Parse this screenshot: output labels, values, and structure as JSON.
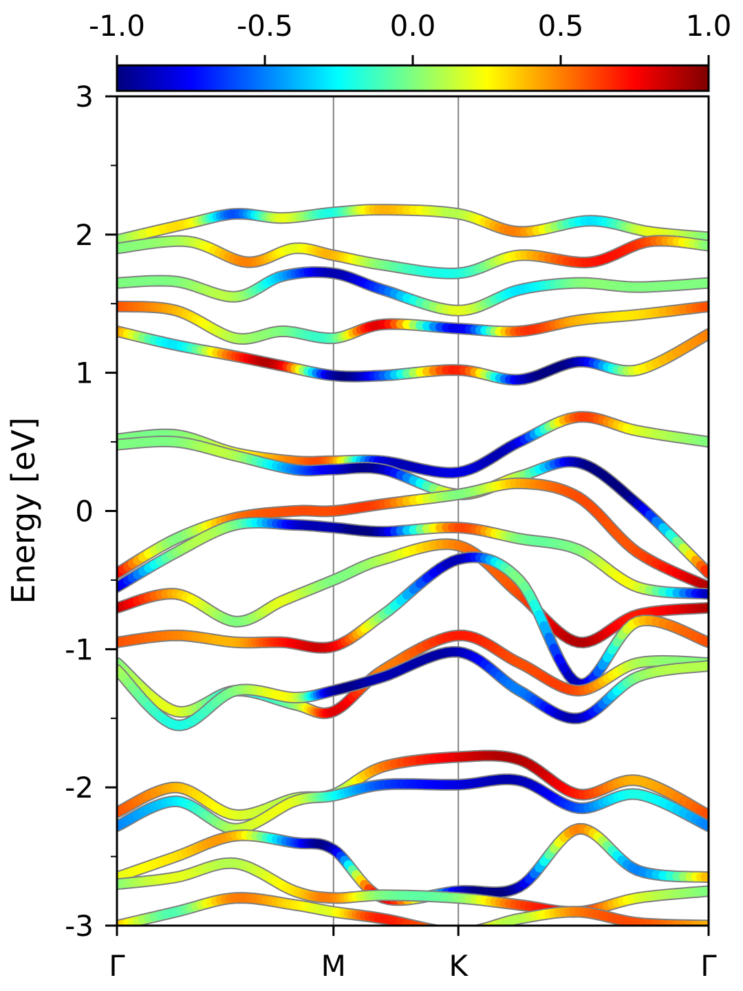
{
  "chart_data": {
    "type": "line",
    "ylabel": "Energy [eV]",
    "xlabel": "",
    "ylim": [
      -3,
      3
    ],
    "xlim": [
      0,
      1
    ],
    "grid": false,
    "legend": "none",
    "colormap": "jet",
    "colorbar": {
      "range": [
        -1.0,
        1.0
      ],
      "tick_values": [
        -1.0,
        -0.5,
        0.0,
        0.5,
        1.0
      ],
      "tick_labels": [
        "-1.0",
        "-0.5",
        "0.0",
        "0.5",
        "1.0"
      ],
      "placement": "top"
    },
    "x_ticks": [
      {
        "label": "Γ",
        "x": 0.0
      },
      {
        "label": "M",
        "x": 0.366
      },
      {
        "label": "K",
        "x": 0.577
      },
      {
        "label": "Γ",
        "x": 1.0
      }
    ],
    "y_ticks": [
      {
        "label": "3",
        "y": 3
      },
      {
        "label": "2",
        "y": 2
      },
      {
        "label": "1",
        "y": 1
      },
      {
        "label": "0",
        "y": 0
      },
      {
        "label": "-1",
        "y": -1
      },
      {
        "label": "-2",
        "y": -2
      },
      {
        "label": "-3",
        "y": -3
      }
    ],
    "y_minor_ticks": [
      2.5,
      1.5,
      0.5,
      -0.5,
      -1.5,
      -2.5
    ],
    "vertical_lines": [
      0.366,
      0.577
    ],
    "series": [
      {
        "x": [
          0,
          0.12,
          0.2,
          0.28,
          0.366,
          0.45,
          0.577,
          0.68,
          0.8,
          0.9,
          1.0
        ],
        "y": [
          1.96,
          2.08,
          2.15,
          2.12,
          2.16,
          2.18,
          2.15,
          2.02,
          2.1,
          2.02,
          1.98
        ],
        "c": [
          0.0,
          0.3,
          -0.6,
          0.2,
          -0.2,
          0.4,
          0.1,
          0.5,
          -0.3,
          0.2,
          0.0
        ]
      },
      {
        "x": [
          0,
          0.12,
          0.22,
          0.3,
          0.366,
          0.45,
          0.577,
          0.68,
          0.8,
          0.9,
          1.0
        ],
        "y": [
          1.9,
          1.95,
          1.8,
          1.9,
          1.85,
          1.78,
          1.72,
          1.85,
          1.8,
          1.95,
          1.92
        ],
        "c": [
          0.0,
          0.1,
          0.5,
          0.2,
          0.4,
          0.0,
          -0.2,
          0.3,
          0.7,
          0.6,
          0.0
        ]
      },
      {
        "x": [
          0,
          0.1,
          0.2,
          0.28,
          0.366,
          0.45,
          0.577,
          0.68,
          0.78,
          0.88,
          1.0
        ],
        "y": [
          1.65,
          1.66,
          1.55,
          1.7,
          1.72,
          1.6,
          1.45,
          1.6,
          1.65,
          1.62,
          1.65
        ],
        "c": [
          0.0,
          0.0,
          0.1,
          -0.4,
          -0.9,
          -0.6,
          0.2,
          -0.3,
          0.0,
          0.0,
          0.0
        ]
      },
      {
        "x": [
          0,
          0.1,
          0.2,
          0.28,
          0.366,
          0.45,
          0.577,
          0.68,
          0.78,
          0.88,
          1.0
        ],
        "y": [
          1.48,
          1.45,
          1.25,
          1.3,
          1.25,
          1.35,
          1.32,
          1.3,
          1.38,
          1.42,
          1.48
        ],
        "c": [
          0.6,
          0.4,
          0.1,
          0.0,
          -0.1,
          0.8,
          -0.8,
          0.6,
          0.4,
          0.3,
          0.6
        ]
      },
      {
        "x": [
          0,
          0.1,
          0.2,
          0.28,
          0.366,
          0.45,
          0.577,
          0.68,
          0.78,
          0.88,
          1.0
        ],
        "y": [
          1.3,
          1.2,
          1.12,
          1.05,
          0.98,
          0.98,
          1.02,
          0.95,
          1.08,
          1.02,
          1.28
        ],
        "c": [
          0.5,
          -0.3,
          0.6,
          0.8,
          -0.9,
          -0.6,
          0.7,
          -0.8,
          -0.9,
          0.2,
          0.5
        ]
      },
      {
        "x": [
          0,
          0.1,
          0.2,
          0.3,
          0.366,
          0.45,
          0.577,
          0.68,
          0.78,
          0.88,
          1.0
        ],
        "y": [
          0.52,
          0.55,
          0.42,
          0.36,
          0.36,
          0.36,
          0.28,
          0.5,
          0.68,
          0.58,
          0.5
        ],
        "c": [
          0.0,
          0.0,
          0.2,
          0.5,
          0.5,
          -0.8,
          -0.8,
          -0.8,
          0.6,
          0.2,
          0.0
        ]
      },
      {
        "x": [
          0,
          0.1,
          0.2,
          0.3,
          0.366,
          0.45,
          0.577,
          0.68,
          0.78,
          0.88,
          1.0
        ],
        "y": [
          0.48,
          0.5,
          0.4,
          0.3,
          0.3,
          0.3,
          0.12,
          0.25,
          0.35,
          0.05,
          -0.45
        ],
        "c": [
          0.0,
          0.0,
          0.1,
          -0.5,
          -0.8,
          -0.9,
          0.3,
          0.1,
          -0.9,
          -0.9,
          0.7
        ]
      },
      {
        "x": [
          0,
          0.1,
          0.2,
          0.3,
          0.366,
          0.45,
          0.577,
          0.68,
          0.78,
          0.88,
          1.0
        ],
        "y": [
          -0.45,
          -0.2,
          -0.05,
          0.0,
          0.0,
          0.05,
          0.12,
          0.2,
          0.1,
          -0.3,
          -0.55
        ],
        "c": [
          0.8,
          0.0,
          0.5,
          0.6,
          0.6,
          0.6,
          0.0,
          0.4,
          0.6,
          0.6,
          0.9
        ]
      },
      {
        "x": [
          0,
          0.1,
          0.2,
          0.3,
          0.366,
          0.45,
          0.577,
          0.68,
          0.78,
          0.88,
          1.0
        ],
        "y": [
          -0.55,
          -0.3,
          -0.1,
          -0.1,
          -0.12,
          -0.15,
          -0.12,
          -0.2,
          -0.28,
          -0.55,
          -0.6
        ],
        "c": [
          -0.9,
          0.0,
          0.0,
          -0.8,
          -0.9,
          -0.9,
          0.6,
          0.0,
          0.0,
          0.2,
          -0.9
        ]
      },
      {
        "x": [
          0,
          0.1,
          0.2,
          0.28,
          0.366,
          0.45,
          0.577,
          0.68,
          0.78,
          0.88,
          1.0
        ],
        "y": [
          -0.7,
          -0.6,
          -0.8,
          -0.65,
          -0.5,
          -0.35,
          -0.25,
          -0.6,
          -0.95,
          -0.75,
          -0.7
        ],
        "c": [
          0.9,
          0.4,
          0.0,
          0.2,
          0.0,
          0.1,
          0.5,
          0.6,
          0.9,
          0.7,
          0.9
        ]
      },
      {
        "x": [
          0,
          0.1,
          0.2,
          0.28,
          0.366,
          0.45,
          0.577,
          0.68,
          0.78,
          0.88,
          1.0
        ],
        "y": [
          -0.95,
          -0.9,
          -0.95,
          -0.95,
          -0.98,
          -0.75,
          -0.35,
          -0.5,
          -1.25,
          -0.8,
          -0.95
        ],
        "c": [
          0.6,
          0.5,
          0.4,
          0.7,
          0.8,
          0.0,
          -0.9,
          0.0,
          -0.9,
          0.3,
          0.6
        ]
      },
      {
        "x": [
          0,
          0.1,
          0.2,
          0.3,
          0.366,
          0.45,
          0.577,
          0.68,
          0.78,
          0.88,
          1.0
        ],
        "y": [
          -1.1,
          -1.45,
          -1.3,
          -1.4,
          -1.45,
          -1.15,
          -0.9,
          -1.1,
          -1.3,
          -1.1,
          -1.1
        ],
        "c": [
          0.0,
          0.2,
          -0.2,
          0.0,
          0.8,
          0.5,
          0.7,
          0.6,
          0.6,
          0.1,
          0.0
        ]
      },
      {
        "x": [
          0,
          0.1,
          0.2,
          0.3,
          0.366,
          0.45,
          0.577,
          0.68,
          0.78,
          0.88,
          1.0
        ],
        "y": [
          -1.15,
          -1.55,
          -1.3,
          -1.35,
          -1.3,
          -1.2,
          -1.02,
          -1.3,
          -1.5,
          -1.2,
          -1.12
        ],
        "c": [
          0.1,
          -0.2,
          0.0,
          0.2,
          -0.9,
          -0.9,
          -0.9,
          -0.5,
          -0.9,
          0.0,
          0.1
        ]
      },
      {
        "x": [
          0,
          0.1,
          0.2,
          0.3,
          0.366,
          0.45,
          0.577,
          0.68,
          0.78,
          0.88,
          1.0
        ],
        "y": [
          -2.18,
          -2.0,
          -2.2,
          -2.08,
          -2.05,
          -1.85,
          -1.78,
          -1.8,
          -2.05,
          -1.95,
          -2.2
        ],
        "c": [
          0.6,
          0.4,
          0.2,
          0.1,
          0.0,
          0.5,
          0.8,
          0.9,
          0.7,
          0.4,
          0.6
        ]
      },
      {
        "x": [
          0,
          0.1,
          0.2,
          0.3,
          0.366,
          0.45,
          0.577,
          0.68,
          0.78,
          0.88,
          1.0
        ],
        "y": [
          -2.28,
          -2.1,
          -2.3,
          -2.1,
          -2.06,
          -1.98,
          -1.98,
          -1.95,
          -2.15,
          -2.05,
          -2.28
        ],
        "c": [
          -0.5,
          -0.3,
          0.1,
          0.2,
          -0.2,
          -0.6,
          -0.8,
          -0.9,
          -0.6,
          -0.2,
          -0.5
        ]
      },
      {
        "x": [
          0,
          0.1,
          0.2,
          0.3,
          0.366,
          0.45,
          0.577,
          0.68,
          0.78,
          0.88,
          1.0
        ],
        "y": [
          -2.65,
          -2.5,
          -2.35,
          -2.4,
          -2.45,
          -2.8,
          -2.75,
          -2.72,
          -2.3,
          -2.6,
          -2.65
        ],
        "c": [
          0.2,
          0.3,
          0.4,
          -0.6,
          -0.9,
          0.8,
          -0.8,
          -0.9,
          0.5,
          -0.5,
          0.4
        ]
      },
      {
        "x": [
          0,
          0.1,
          0.2,
          0.3,
          0.366,
          0.45,
          0.577,
          0.68,
          0.78,
          0.88,
          1.0
        ],
        "y": [
          -2.7,
          -2.65,
          -2.55,
          -2.75,
          -2.8,
          -2.78,
          -2.8,
          -2.85,
          -2.9,
          -2.8,
          -2.75
        ],
        "c": [
          0.0,
          0.2,
          0.1,
          0.3,
          0.5,
          0.0,
          0.0,
          0.6,
          0.7,
          0.2,
          0.0
        ]
      },
      {
        "x": [
          0,
          0.1,
          0.2,
          0.3,
          0.366,
          0.45,
          0.577,
          0.68,
          0.78,
          0.88,
          1.0
        ],
        "y": [
          -3.0,
          -2.9,
          -2.8,
          -2.85,
          -2.9,
          -2.95,
          -3.05,
          -2.95,
          -2.9,
          -2.98,
          -3.0
        ],
        "c": [
          0.4,
          -0.1,
          0.5,
          0.3,
          0.2,
          0.7,
          0.4,
          0.1,
          0.5,
          0.6,
          0.4
        ]
      }
    ]
  }
}
